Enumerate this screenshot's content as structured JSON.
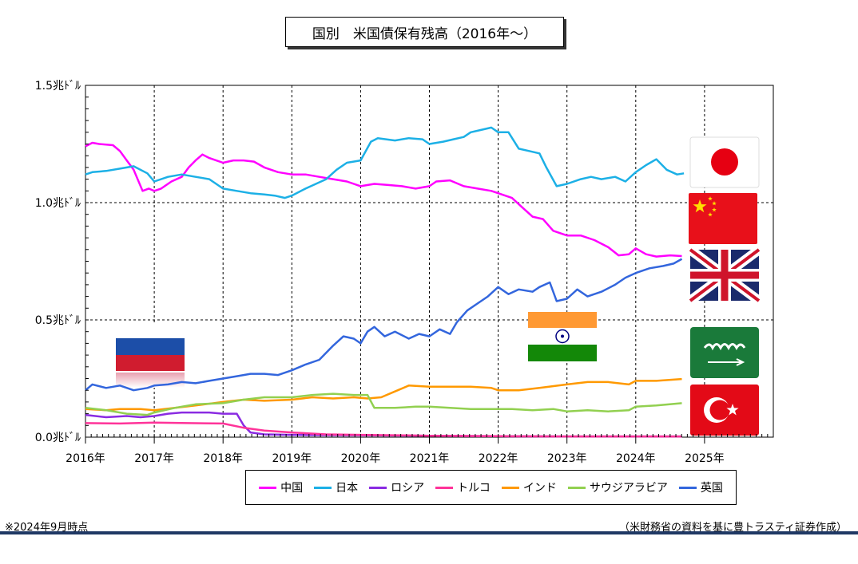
{
  "title": "国別　米国債保有残高（2016年～）",
  "note_left": "※2024年9月時点",
  "note_right": "（米財務省の資料を基に豊トラスティ証券作成）",
  "chart_data": {
    "type": "line",
    "title": "国別　米国債保有残高（2016年～）",
    "ylabel": "",
    "y_ticks": [
      "0.0兆ﾄﾞﾙ",
      "0.5兆ﾄﾞﾙ",
      "1.0兆ﾄﾞﾙ",
      "1.5兆ﾄﾞﾙ"
    ],
    "y_tick_values": [
      0,
      0.5,
      1.0,
      1.5
    ],
    "ylim": [
      0,
      1.5
    ],
    "x_ticks": [
      "2016年",
      "2017年",
      "2018年",
      "2019年",
      "2020年",
      "2021年",
      "2022年",
      "2023年",
      "2024年",
      "2025年"
    ],
    "xlim": [
      2016,
      2026
    ],
    "grid": "major dashed",
    "legend_position": "bottom",
    "series": [
      {
        "name": "中国",
        "color": "#ff00ff",
        "x": [
          2016.0,
          2016.1,
          2016.2,
          2016.4,
          2016.5,
          2016.6,
          2016.7,
          2016.83,
          2016.92,
          2017.0,
          2017.1,
          2017.25,
          2017.4,
          2017.5,
          2017.6,
          2017.7,
          2017.8,
          2017.9,
          2018.0,
          2018.15,
          2018.3,
          2018.45,
          2018.6,
          2018.8,
          2019.0,
          2019.2,
          2019.4,
          2019.6,
          2019.8,
          2020.0,
          2020.2,
          2020.4,
          2020.6,
          2020.8,
          2021.0,
          2021.1,
          2021.3,
          2021.5,
          2021.7,
          2021.9,
          2022.0,
          2022.2,
          2022.35,
          2022.5,
          2022.65,
          2022.8,
          2023.0,
          2023.2,
          2023.4,
          2023.6,
          2023.75,
          2023.9,
          2024.0,
          2024.15,
          2024.3,
          2024.5,
          2024.67
        ],
        "values": [
          1.24,
          1.255,
          1.25,
          1.245,
          1.22,
          1.18,
          1.14,
          1.05,
          1.06,
          1.05,
          1.06,
          1.09,
          1.11,
          1.15,
          1.18,
          1.205,
          1.19,
          1.18,
          1.17,
          1.18,
          1.18,
          1.175,
          1.15,
          1.13,
          1.12,
          1.12,
          1.11,
          1.1,
          1.09,
          1.07,
          1.08,
          1.075,
          1.07,
          1.06,
          1.07,
          1.09,
          1.095,
          1.07,
          1.06,
          1.05,
          1.04,
          1.02,
          0.98,
          0.94,
          0.93,
          0.88,
          0.86,
          0.86,
          0.84,
          0.81,
          0.775,
          0.78,
          0.805,
          0.78,
          0.77,
          0.775,
          0.772
        ]
      },
      {
        "name": "日本",
        "color": "#1cb0e6",
        "x": [
          2016.0,
          2016.1,
          2016.3,
          2016.5,
          2016.7,
          2016.9,
          2017.0,
          2017.2,
          2017.4,
          2017.6,
          2017.8,
          2018.0,
          2018.2,
          2018.4,
          2018.6,
          2018.75,
          2018.9,
          2019.0,
          2019.2,
          2019.35,
          2019.5,
          2019.65,
          2019.8,
          2020.0,
          2020.15,
          2020.25,
          2020.5,
          2020.7,
          2020.9,
          2021.0,
          2021.2,
          2021.35,
          2021.5,
          2021.6,
          2021.75,
          2021.9,
          2022.0,
          2022.15,
          2022.3,
          2022.45,
          2022.6,
          2022.7,
          2022.85,
          2023.0,
          2023.2,
          2023.35,
          2023.5,
          2023.7,
          2023.85,
          2024.0,
          2024.15,
          2024.3,
          2024.45,
          2024.6,
          2024.7
        ],
        "values": [
          1.12,
          1.13,
          1.135,
          1.145,
          1.155,
          1.125,
          1.09,
          1.11,
          1.12,
          1.11,
          1.1,
          1.06,
          1.05,
          1.04,
          1.035,
          1.03,
          1.02,
          1.03,
          1.06,
          1.08,
          1.1,
          1.14,
          1.17,
          1.18,
          1.26,
          1.275,
          1.265,
          1.275,
          1.27,
          1.25,
          1.26,
          1.27,
          1.28,
          1.3,
          1.31,
          1.32,
          1.3,
          1.3,
          1.23,
          1.22,
          1.21,
          1.15,
          1.07,
          1.08,
          1.1,
          1.11,
          1.1,
          1.11,
          1.09,
          1.13,
          1.16,
          1.185,
          1.14,
          1.12,
          1.125
        ]
      },
      {
        "name": "ロシア",
        "color": "#8a2be2",
        "x": [
          2016.0,
          2016.3,
          2016.6,
          2016.8,
          2017.0,
          2017.2,
          2017.4,
          2017.6,
          2017.8,
          2018.0,
          2018.1,
          2018.2,
          2018.3,
          2018.4,
          2018.6,
          2019.0,
          2020.0,
          2021.0,
          2022.0,
          2023.0,
          2024.0,
          2024.67
        ],
        "values": [
          0.095,
          0.085,
          0.09,
          0.085,
          0.09,
          0.1,
          0.105,
          0.105,
          0.105,
          0.1,
          0.1,
          0.1,
          0.05,
          0.02,
          0.012,
          0.01,
          0.008,
          0.006,
          0.004,
          0.003,
          0.003,
          0.003
        ]
      },
      {
        "name": "トルコ",
        "color": "#ff3399",
        "x": [
          2016.0,
          2016.5,
          2017.0,
          2017.5,
          2018.0,
          2018.3,
          2018.6,
          2019.0,
          2019.5,
          2020.0,
          2020.5,
          2021.0,
          2022.0,
          2023.0,
          2024.0,
          2024.67
        ],
        "values": [
          0.06,
          0.058,
          0.062,
          0.06,
          0.058,
          0.04,
          0.028,
          0.02,
          0.012,
          0.01,
          0.008,
          0.006,
          0.004,
          0.003,
          0.003,
          0.003
        ]
      },
      {
        "name": "インド",
        "color": "#ff9900",
        "x": [
          2016.0,
          2016.3,
          2016.5,
          2016.8,
          2017.0,
          2017.3,
          2017.6,
          2018.0,
          2018.3,
          2018.6,
          2019.0,
          2019.3,
          2019.6,
          2019.9,
          2020.1,
          2020.3,
          2020.5,
          2020.7,
          2021.0,
          2021.3,
          2021.6,
          2021.9,
          2022.0,
          2022.3,
          2022.6,
          2023.0,
          2023.3,
          2023.6,
          2023.9,
          2024.0,
          2024.3,
          2024.67
        ],
        "values": [
          0.12,
          0.115,
          0.12,
          0.12,
          0.115,
          0.125,
          0.135,
          0.15,
          0.16,
          0.155,
          0.16,
          0.17,
          0.165,
          0.17,
          0.165,
          0.17,
          0.195,
          0.22,
          0.215,
          0.215,
          0.215,
          0.21,
          0.2,
          0.2,
          0.21,
          0.225,
          0.235,
          0.235,
          0.225,
          0.24,
          0.24,
          0.248
        ]
      },
      {
        "name": "サウジアラビア",
        "color": "#92d050",
        "x": [
          2016.0,
          2016.3,
          2016.6,
          2016.9,
          2017.0,
          2017.3,
          2017.6,
          2018.0,
          2018.3,
          2018.6,
          2019.0,
          2019.3,
          2019.6,
          2019.9,
          2020.1,
          2020.2,
          2020.5,
          2020.8,
          2021.0,
          2021.3,
          2021.6,
          2021.9,
          2022.2,
          2022.5,
          2022.8,
          2023.0,
          2023.3,
          2023.6,
          2023.9,
          2024.0,
          2024.3,
          2024.67
        ],
        "values": [
          0.125,
          0.115,
          0.1,
          0.095,
          0.105,
          0.125,
          0.14,
          0.145,
          0.16,
          0.17,
          0.17,
          0.18,
          0.185,
          0.18,
          0.18,
          0.125,
          0.125,
          0.13,
          0.13,
          0.125,
          0.12,
          0.12,
          0.12,
          0.115,
          0.12,
          0.11,
          0.115,
          0.11,
          0.115,
          0.13,
          0.135,
          0.145
        ]
      },
      {
        "name": "英国",
        "color": "#3366dd",
        "x": [
          2016.0,
          2016.1,
          2016.3,
          2016.5,
          2016.7,
          2016.9,
          2017.0,
          2017.2,
          2017.4,
          2017.6,
          2017.8,
          2018.0,
          2018.2,
          2018.4,
          2018.6,
          2018.8,
          2019.0,
          2019.2,
          2019.4,
          2019.6,
          2019.75,
          2019.9,
          2020.0,
          2020.1,
          2020.2,
          2020.35,
          2020.5,
          2020.7,
          2020.85,
          2021.0,
          2021.15,
          2021.3,
          2021.4,
          2021.55,
          2021.7,
          2021.85,
          2022.0,
          2022.15,
          2022.3,
          2022.5,
          2022.6,
          2022.75,
          2022.85,
          2023.0,
          2023.15,
          2023.3,
          2023.5,
          2023.7,
          2023.85,
          2024.0,
          2024.2,
          2024.4,
          2024.55,
          2024.67
        ],
        "values": [
          0.2,
          0.225,
          0.21,
          0.22,
          0.2,
          0.21,
          0.22,
          0.225,
          0.235,
          0.23,
          0.24,
          0.25,
          0.26,
          0.27,
          0.27,
          0.265,
          0.285,
          0.31,
          0.33,
          0.39,
          0.43,
          0.42,
          0.4,
          0.45,
          0.47,
          0.43,
          0.45,
          0.42,
          0.44,
          0.43,
          0.46,
          0.44,
          0.49,
          0.54,
          0.57,
          0.6,
          0.64,
          0.61,
          0.63,
          0.62,
          0.64,
          0.66,
          0.58,
          0.59,
          0.63,
          0.6,
          0.62,
          0.65,
          0.68,
          0.7,
          0.72,
          0.73,
          0.74,
          0.76
        ]
      }
    ]
  },
  "flags": [
    {
      "name": "japan-flag",
      "country": "日本"
    },
    {
      "name": "china-flag",
      "country": "中国"
    },
    {
      "name": "uk-flag",
      "country": "英国"
    },
    {
      "name": "saudi-flag",
      "country": "サウジアラビア"
    },
    {
      "name": "turkey-flag",
      "country": "トルコ"
    },
    {
      "name": "russia-flag",
      "country": "ロシア"
    },
    {
      "name": "india-flag",
      "country": "インド"
    }
  ]
}
